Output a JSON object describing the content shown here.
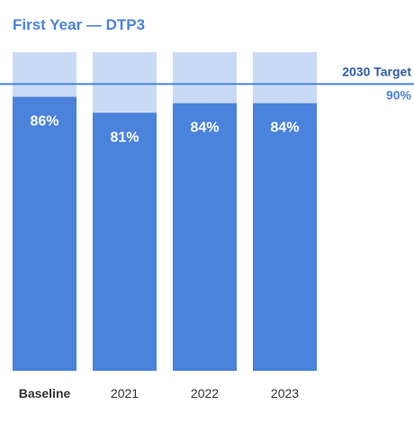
{
  "chart_data": {
    "type": "bar",
    "title": "First Year — DTP3",
    "categories": [
      "Baseline",
      "2021",
      "2022",
      "2023"
    ],
    "values": [
      86,
      81,
      84,
      84
    ],
    "value_labels": [
      "86%",
      "81%",
      "84%",
      "84%"
    ],
    "ylim": [
      0,
      100
    ],
    "grid": false,
    "target": {
      "label": "2030 Target",
      "value": 90,
      "value_label": "90%"
    },
    "colors": {
      "bar": "#4a82dc",
      "remainder": "#c9daf6",
      "target_line": "#4a82dc",
      "title": "#4a82dc"
    },
    "emphasized_category": "Baseline"
  }
}
